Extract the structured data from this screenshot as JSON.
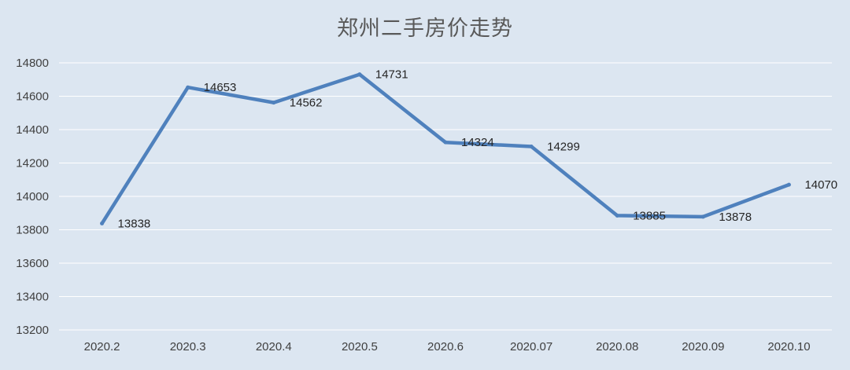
{
  "chart_data": {
    "type": "line",
    "title": "郑州二手房价走势",
    "categories": [
      "2020.2",
      "2020.3",
      "2020.4",
      "2020.5",
      "2020.6",
      "2020.07",
      "2020.08",
      "2020.09",
      "2020.10"
    ],
    "values": [
      13838,
      14653,
      14562,
      14731,
      14324,
      14299,
      13885,
      13878,
      14070
    ],
    "data_labels": [
      "13838",
      "14653",
      "14562",
      "14731",
      "14324",
      "14299",
      "13885",
      "13878",
      "14070"
    ],
    "yticks": [
      "13200",
      "13400",
      "13600",
      "13800",
      "14000",
      "14200",
      "14400",
      "14600",
      "14800"
    ],
    "ylim": [
      13200,
      14800
    ],
    "xlabel": "",
    "ylabel": "",
    "grid": true,
    "legend": "none",
    "line_color": "#4f81bd",
    "background_color": "#dce6f1",
    "grid_color": "#ffffff"
  }
}
